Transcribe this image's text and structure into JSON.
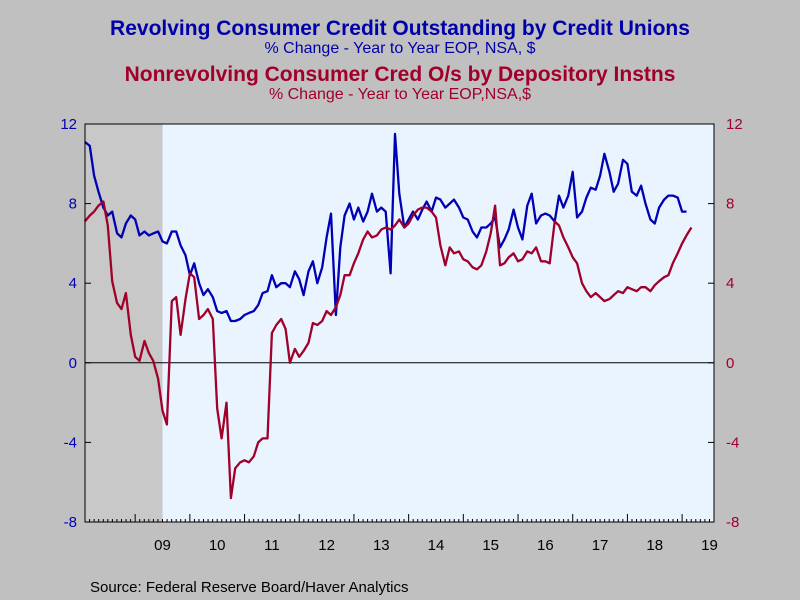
{
  "header": {
    "title1": "Revolving Consumer Credit Outstanding by Credit Unions",
    "subtitle1": "% Change - Year to Year     EOP, NSA, $",
    "title2": "Nonrevolving Consumer Cred O/s by Depository Instns",
    "subtitle2": "% Change - Year to Year     EOP,NSA,$"
  },
  "footer": {
    "source": "Source:  Federal Reserve Board/Haver Analytics"
  },
  "colors": {
    "series1": "#0000b4",
    "series2": "#a0002a",
    "plot_bg": "#eaf4ff",
    "recession": "#c8c8c8",
    "frame": "#c0c0c0"
  },
  "chart_data": {
    "type": "line",
    "ylim": [
      -8,
      12
    ],
    "yticks": [
      -8,
      -4,
      0,
      4,
      8,
      12
    ],
    "y_right_ticks": [
      -8,
      -4,
      0,
      4,
      8,
      12
    ],
    "xlim": [
      2008.083,
      2019.583
    ],
    "x_ticks_labels": [
      "09",
      "10",
      "11",
      "12",
      "13",
      "14",
      "15",
      "16",
      "17",
      "18",
      "19"
    ],
    "recession": [
      2008.083,
      2009.5
    ],
    "zero_line": true,
    "series": [
      {
        "axis": "left",
        "points": [
          [
            2008.08,
            11.1
          ],
          [
            2008.17,
            10.9
          ],
          [
            2008.25,
            9.4
          ],
          [
            2008.33,
            8.6
          ],
          [
            2008.42,
            7.8
          ],
          [
            2008.5,
            7.4
          ],
          [
            2008.58,
            7.6
          ],
          [
            2008.67,
            6.5
          ],
          [
            2008.75,
            6.3
          ],
          [
            2008.83,
            7.0
          ],
          [
            2008.92,
            7.4
          ],
          [
            2009.0,
            7.2
          ],
          [
            2009.08,
            6.4
          ],
          [
            2009.17,
            6.6
          ],
          [
            2009.25,
            6.4
          ],
          [
            2009.33,
            6.5
          ],
          [
            2009.42,
            6.6
          ],
          [
            2009.5,
            6.1
          ],
          [
            2009.58,
            6.0
          ],
          [
            2009.67,
            6.6
          ],
          [
            2009.75,
            6.6
          ],
          [
            2009.83,
            5.9
          ],
          [
            2009.92,
            5.4
          ],
          [
            2010.0,
            4.4
          ],
          [
            2010.08,
            5.0
          ],
          [
            2010.17,
            4.0
          ],
          [
            2010.25,
            3.4
          ],
          [
            2010.33,
            3.7
          ],
          [
            2010.42,
            3.3
          ],
          [
            2010.5,
            2.6
          ],
          [
            2010.58,
            2.5
          ],
          [
            2010.67,
            2.6
          ],
          [
            2010.75,
            2.1
          ],
          [
            2010.83,
            2.1
          ],
          [
            2010.92,
            2.2
          ],
          [
            2011.0,
            2.4
          ],
          [
            2011.08,
            2.5
          ],
          [
            2011.17,
            2.6
          ],
          [
            2011.25,
            2.9
          ],
          [
            2011.33,
            3.5
          ],
          [
            2011.42,
            3.6
          ],
          [
            2011.5,
            4.4
          ],
          [
            2011.58,
            3.8
          ],
          [
            2011.67,
            4.0
          ],
          [
            2011.75,
            4.0
          ],
          [
            2011.83,
            3.8
          ],
          [
            2011.92,
            4.6
          ],
          [
            2012.0,
            4.2
          ],
          [
            2012.08,
            3.4
          ],
          [
            2012.17,
            4.6
          ],
          [
            2012.25,
            5.1
          ],
          [
            2012.33,
            4.0
          ],
          [
            2012.42,
            4.8
          ],
          [
            2012.5,
            6.3
          ],
          [
            2012.58,
            7.5
          ],
          [
            2012.67,
            2.4
          ],
          [
            2012.75,
            5.8
          ],
          [
            2012.83,
            7.4
          ],
          [
            2012.92,
            8.0
          ],
          [
            2013.0,
            7.2
          ],
          [
            2013.08,
            7.8
          ],
          [
            2013.17,
            7.1
          ],
          [
            2013.25,
            7.6
          ],
          [
            2013.33,
            8.5
          ],
          [
            2013.42,
            7.6
          ],
          [
            2013.5,
            7.8
          ],
          [
            2013.58,
            7.6
          ],
          [
            2013.67,
            4.5
          ],
          [
            2013.75,
            11.5
          ],
          [
            2013.83,
            8.5
          ],
          [
            2013.92,
            6.8
          ],
          [
            2014.0,
            7.2
          ],
          [
            2014.08,
            7.6
          ],
          [
            2014.17,
            7.2
          ],
          [
            2014.25,
            7.7
          ],
          [
            2014.33,
            8.1
          ],
          [
            2014.42,
            7.6
          ],
          [
            2014.5,
            8.3
          ],
          [
            2014.58,
            8.2
          ],
          [
            2014.67,
            7.8
          ],
          [
            2014.75,
            8.0
          ],
          [
            2014.83,
            8.2
          ],
          [
            2014.92,
            7.8
          ],
          [
            2015.0,
            7.3
          ],
          [
            2015.08,
            7.2
          ],
          [
            2015.17,
            6.6
          ],
          [
            2015.25,
            6.3
          ],
          [
            2015.33,
            6.8
          ],
          [
            2015.42,
            6.8
          ],
          [
            2015.5,
            7.0
          ],
          [
            2015.58,
            7.3
          ],
          [
            2015.67,
            5.8
          ],
          [
            2015.75,
            6.2
          ],
          [
            2015.83,
            6.7
          ],
          [
            2015.92,
            7.7
          ],
          [
            2016.0,
            6.8
          ],
          [
            2016.08,
            6.2
          ],
          [
            2016.17,
            7.9
          ],
          [
            2016.25,
            8.5
          ],
          [
            2016.33,
            7.0
          ],
          [
            2016.42,
            7.4
          ],
          [
            2016.5,
            7.5
          ],
          [
            2016.58,
            7.4
          ],
          [
            2016.67,
            7.1
          ],
          [
            2016.75,
            8.4
          ],
          [
            2016.83,
            7.8
          ],
          [
            2016.92,
            8.4
          ],
          [
            2017.0,
            9.6
          ],
          [
            2017.08,
            7.3
          ],
          [
            2017.17,
            7.6
          ],
          [
            2017.25,
            8.3
          ],
          [
            2017.33,
            8.8
          ],
          [
            2017.42,
            8.7
          ],
          [
            2017.5,
            9.4
          ],
          [
            2017.58,
            10.5
          ],
          [
            2017.67,
            9.6
          ],
          [
            2017.75,
            8.6
          ],
          [
            2017.83,
            9.0
          ],
          [
            2017.92,
            10.2
          ],
          [
            2018.0,
            10.0
          ],
          [
            2018.08,
            8.6
          ],
          [
            2018.17,
            8.4
          ],
          [
            2018.25,
            8.9
          ],
          [
            2018.33,
            8.0
          ],
          [
            2018.42,
            7.2
          ],
          [
            2018.5,
            7.0
          ],
          [
            2018.58,
            7.8
          ],
          [
            2018.67,
            8.2
          ],
          [
            2018.75,
            8.4
          ],
          [
            2018.83,
            8.4
          ],
          [
            2018.92,
            8.3
          ],
          [
            2019.0,
            7.6
          ],
          [
            2019.08,
            7.6
          ]
        ]
      },
      {
        "axis": "right",
        "points": [
          [
            2008.08,
            7.1
          ],
          [
            2008.17,
            7.4
          ],
          [
            2008.25,
            7.6
          ],
          [
            2008.33,
            7.9
          ],
          [
            2008.42,
            8.1
          ],
          [
            2008.5,
            6.9
          ],
          [
            2008.58,
            4.1
          ],
          [
            2008.67,
            3.0
          ],
          [
            2008.75,
            2.7
          ],
          [
            2008.83,
            3.5
          ],
          [
            2008.92,
            1.4
          ],
          [
            2009.0,
            0.3
          ],
          [
            2009.08,
            0.1
          ],
          [
            2009.17,
            1.1
          ],
          [
            2009.25,
            0.5
          ],
          [
            2009.33,
            0.1
          ],
          [
            2009.42,
            -0.8
          ],
          [
            2009.5,
            -2.4
          ],
          [
            2009.58,
            -3.1
          ],
          [
            2009.67,
            3.1
          ],
          [
            2009.75,
            3.3
          ],
          [
            2009.83,
            1.4
          ],
          [
            2009.92,
            3.2
          ],
          [
            2010.0,
            4.5
          ],
          [
            2010.08,
            4.3
          ],
          [
            2010.17,
            2.2
          ],
          [
            2010.25,
            2.4
          ],
          [
            2010.33,
            2.7
          ],
          [
            2010.42,
            2.2
          ],
          [
            2010.5,
            -2.3
          ],
          [
            2010.58,
            -3.8
          ],
          [
            2010.67,
            -2.0
          ],
          [
            2010.75,
            -6.8
          ],
          [
            2010.83,
            -5.3
          ],
          [
            2010.92,
            -5.0
          ],
          [
            2011.0,
            -4.9
          ],
          [
            2011.08,
            -5.0
          ],
          [
            2011.17,
            -4.7
          ],
          [
            2011.25,
            -4.0
          ],
          [
            2011.33,
            -3.8
          ],
          [
            2011.42,
            -3.8
          ],
          [
            2011.5,
            1.5
          ],
          [
            2011.58,
            1.9
          ],
          [
            2011.67,
            2.2
          ],
          [
            2011.75,
            1.7
          ],
          [
            2011.83,
            0.0
          ],
          [
            2011.92,
            0.7
          ],
          [
            2012.0,
            0.3
          ],
          [
            2012.08,
            0.6
          ],
          [
            2012.17,
            1.0
          ],
          [
            2012.25,
            2.0
          ],
          [
            2012.33,
            1.9
          ],
          [
            2012.42,
            2.1
          ],
          [
            2012.5,
            2.6
          ],
          [
            2012.58,
            2.4
          ],
          [
            2012.67,
            2.8
          ],
          [
            2012.75,
            3.4
          ],
          [
            2012.83,
            4.4
          ],
          [
            2012.92,
            4.4
          ],
          [
            2013.0,
            5.0
          ],
          [
            2013.08,
            5.5
          ],
          [
            2013.17,
            6.2
          ],
          [
            2013.25,
            6.6
          ],
          [
            2013.33,
            6.3
          ],
          [
            2013.42,
            6.4
          ],
          [
            2013.5,
            6.7
          ],
          [
            2013.58,
            6.8
          ],
          [
            2013.67,
            6.7
          ],
          [
            2013.75,
            6.9
          ],
          [
            2013.83,
            7.2
          ],
          [
            2013.92,
            6.8
          ],
          [
            2014.0,
            7.0
          ],
          [
            2014.08,
            7.4
          ],
          [
            2014.17,
            7.7
          ],
          [
            2014.25,
            7.8
          ],
          [
            2014.33,
            7.8
          ],
          [
            2014.42,
            7.6
          ],
          [
            2014.5,
            7.3
          ],
          [
            2014.58,
            5.9
          ],
          [
            2014.67,
            4.9
          ],
          [
            2014.75,
            5.8
          ],
          [
            2014.83,
            5.5
          ],
          [
            2014.92,
            5.6
          ],
          [
            2015.0,
            5.2
          ],
          [
            2015.08,
            5.1
          ],
          [
            2015.17,
            4.8
          ],
          [
            2015.25,
            4.7
          ],
          [
            2015.33,
            4.9
          ],
          [
            2015.42,
            5.6
          ],
          [
            2015.5,
            6.5
          ],
          [
            2015.58,
            7.9
          ],
          [
            2015.67,
            4.9
          ],
          [
            2015.75,
            5.0
          ],
          [
            2015.83,
            5.3
          ],
          [
            2015.92,
            5.5
          ],
          [
            2016.0,
            5.1
          ],
          [
            2016.08,
            5.2
          ],
          [
            2016.17,
            5.6
          ],
          [
            2016.25,
            5.5
          ],
          [
            2016.33,
            5.8
          ],
          [
            2016.42,
            5.1
          ],
          [
            2016.5,
            5.1
          ],
          [
            2016.58,
            5.0
          ],
          [
            2016.67,
            7.1
          ],
          [
            2016.75,
            6.9
          ],
          [
            2016.83,
            6.3
          ],
          [
            2016.92,
            5.8
          ],
          [
            2017.0,
            5.3
          ],
          [
            2017.08,
            5.0
          ],
          [
            2017.17,
            4.0
          ],
          [
            2017.25,
            3.6
          ],
          [
            2017.33,
            3.3
          ],
          [
            2017.42,
            3.5
          ],
          [
            2017.5,
            3.3
          ],
          [
            2017.58,
            3.1
          ],
          [
            2017.67,
            3.2
          ],
          [
            2017.75,
            3.4
          ],
          [
            2017.83,
            3.6
          ],
          [
            2017.92,
            3.5
          ],
          [
            2018.0,
            3.8
          ],
          [
            2018.08,
            3.7
          ],
          [
            2018.17,
            3.6
          ],
          [
            2018.25,
            3.8
          ],
          [
            2018.33,
            3.8
          ],
          [
            2018.42,
            3.6
          ],
          [
            2018.5,
            3.9
          ],
          [
            2018.58,
            4.1
          ],
          [
            2018.67,
            4.3
          ],
          [
            2018.75,
            4.4
          ],
          [
            2018.83,
            5.0
          ],
          [
            2018.92,
            5.5
          ],
          [
            2019.0,
            6.0
          ],
          [
            2019.08,
            6.4
          ],
          [
            2019.17,
            6.8
          ]
        ]
      }
    ]
  }
}
